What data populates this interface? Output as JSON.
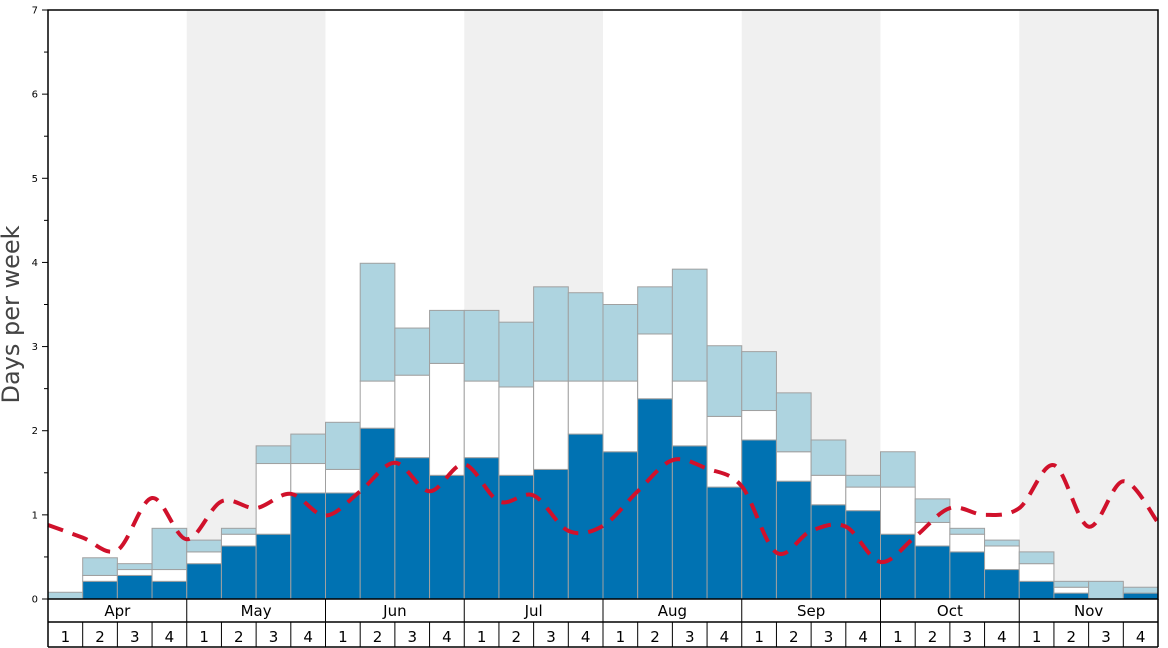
{
  "chart_data": {
    "type": "bar",
    "stacked": true,
    "title": "",
    "xlabel": "",
    "ylabel": "Days per week",
    "ylim": [
      0,
      7
    ],
    "y_ticks": [
      "0",
      "1",
      "2",
      "3",
      "4",
      "5",
      "6",
      "7"
    ],
    "months": [
      "Apr",
      "May",
      "Jun",
      "Jul",
      "Aug",
      "Sep",
      "Oct",
      "Nov"
    ],
    "weeks_per_month": [
      "1",
      "2",
      "3",
      "4"
    ],
    "shaded_months": [
      "May",
      "Jul",
      "Sep",
      "Nov"
    ],
    "series": [
      {
        "color": "#0072b2",
        "values": [
          0.0,
          0.21,
          0.28,
          0.21,
          0.42,
          0.63,
          0.77,
          1.26,
          1.26,
          2.03,
          1.68,
          1.47,
          1.68,
          1.47,
          1.54,
          1.96,
          1.75,
          2.38,
          1.82,
          1.33,
          1.89,
          1.4,
          1.12,
          1.05,
          0.77,
          0.63,
          0.56,
          0.35,
          0.21,
          0.07,
          0.0,
          0.07
        ]
      },
      {
        "color": "#ffffff",
        "values": [
          0.0,
          0.07,
          0.07,
          0.14,
          0.14,
          0.14,
          0.84,
          0.35,
          0.28,
          0.56,
          0.98,
          1.33,
          0.91,
          1.05,
          1.05,
          0.63,
          0.84,
          0.77,
          0.77,
          0.84,
          0.35,
          0.35,
          0.35,
          0.28,
          0.56,
          0.28,
          0.21,
          0.28,
          0.21,
          0.07,
          0.0,
          0.0
        ]
      },
      {
        "color": "#aed4e0",
        "values": [
          0.08,
          0.21,
          0.07,
          0.49,
          0.14,
          0.07,
          0.21,
          0.35,
          0.56,
          1.4,
          0.56,
          0.63,
          0.84,
          0.77,
          1.12,
          1.05,
          0.91,
          0.56,
          1.33,
          0.84,
          0.7,
          0.7,
          0.42,
          0.14,
          0.42,
          0.28,
          0.07,
          0.07,
          0.14,
          0.07,
          0.21,
          0.07
        ]
      }
    ],
    "dashed_line": {
      "color": "#d0112b",
      "values": [
        0.88,
        0.73,
        0.58,
        1.2,
        0.71,
        1.16,
        1.08,
        1.25,
        0.99,
        1.28,
        1.62,
        1.28,
        1.6,
        1.16,
        1.23,
        0.81,
        0.87,
        1.28,
        1.65,
        1.55,
        1.34,
        0.55,
        0.81,
        0.86,
        0.44,
        0.74,
        1.08,
        1.0,
        1.08,
        1.59,
        0.86,
        1.4,
        0.91
      ]
    },
    "grid": false,
    "legend": "none"
  }
}
